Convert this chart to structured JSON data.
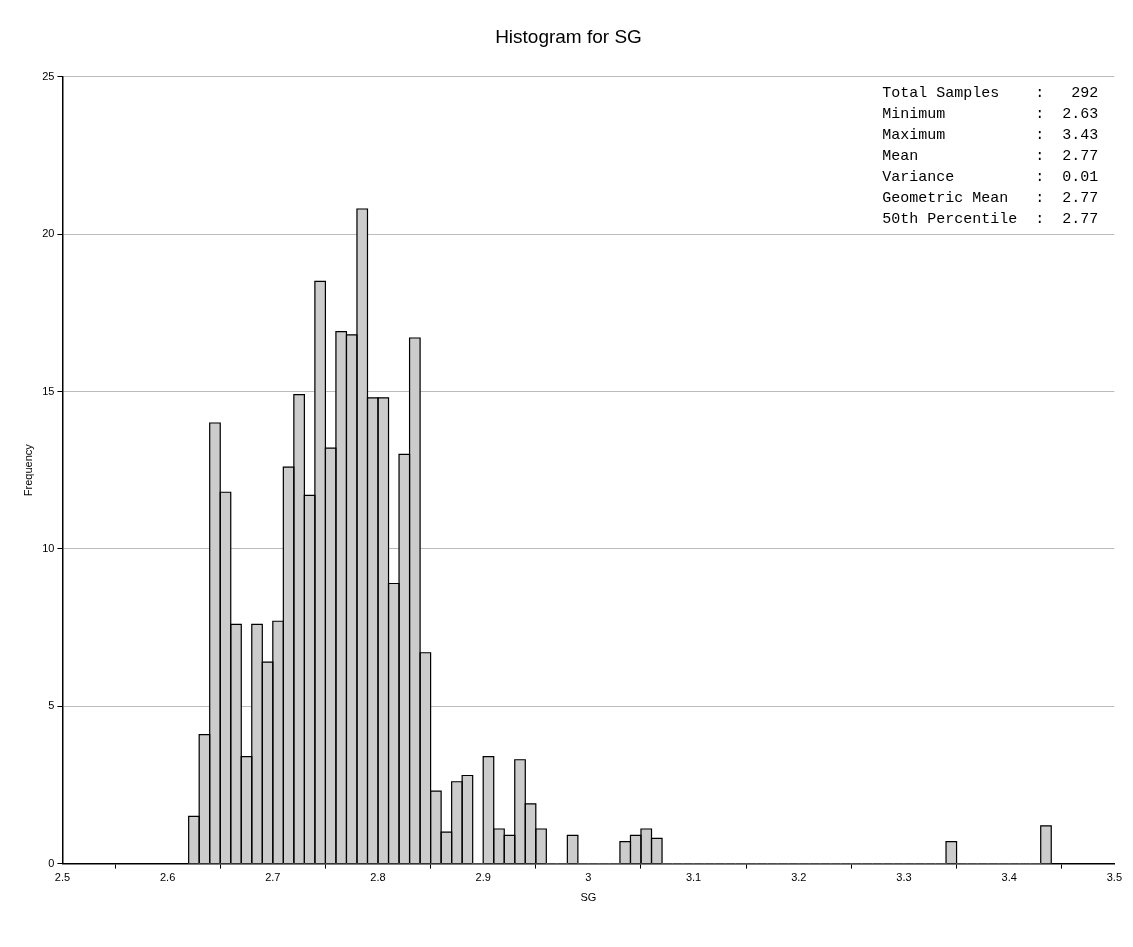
{
  "chart_data": {
    "type": "histogram",
    "title": "Histogram for SG",
    "xlabel": "SG",
    "ylabel": "Frequency",
    "bins": [
      2.62,
      2.63,
      2.64,
      2.65,
      2.66,
      2.67,
      2.68,
      2.69,
      2.7,
      2.71,
      2.72,
      2.73,
      2.74,
      2.75,
      2.76,
      2.77,
      2.78,
      2.79,
      2.8,
      2.81,
      2.82,
      2.83,
      2.84,
      2.85,
      2.86,
      2.87,
      2.88,
      2.89,
      2.9,
      2.91,
      2.92,
      2.93,
      2.94,
      2.95,
      2.96,
      2.97,
      2.98,
      2.99,
      3.0,
      3.01,
      3.02,
      3.03,
      3.04,
      3.05,
      3.06,
      3.07,
      3.08,
      3.09,
      3.1,
      3.11,
      3.12,
      3.13,
      3.14,
      3.15,
      3.16,
      3.17,
      3.18,
      3.19,
      3.2,
      3.21,
      3.22,
      3.23,
      3.24,
      3.25,
      3.26,
      3.27,
      3.28,
      3.29,
      3.3,
      3.31,
      3.32,
      3.33,
      3.34,
      3.35,
      3.36,
      3.37,
      3.38,
      3.39,
      3.4,
      3.41,
      3.42,
      3.43,
      3.44
    ],
    "values": [
      1.5,
      4.1,
      14.0,
      11.8,
      7.6,
      3.4,
      7.6,
      6.4,
      7.7,
      12.6,
      14.9,
      11.7,
      18.5,
      13.2,
      16.9,
      16.8,
      20.8,
      14.8,
      14.8,
      8.9,
      13.0,
      16.7,
      6.7,
      2.3,
      1.0,
      2.6,
      2.8,
      0,
      3.4,
      1.1,
      0.9,
      3.3,
      1.9,
      1.1,
      0,
      0,
      0.9,
      0,
      0,
      0,
      0,
      0.7,
      0.9,
      1.1,
      0.8,
      0,
      0,
      0,
      0,
      0,
      0,
      0,
      0,
      0,
      0,
      0,
      0,
      0,
      0,
      0,
      0,
      0,
      0,
      0,
      0,
      0,
      0,
      0,
      0,
      0,
      0,
      0,
      0.7,
      0,
      0,
      0,
      0,
      0,
      0,
      0,
      0,
      1.2
    ],
    "color": "#cccccc",
    "xlim": [
      2.5,
      3.5
    ],
    "xticks": [
      2.5,
      2.6,
      2.7,
      2.8,
      2.9,
      3,
      3.1,
      3.2,
      3.3,
      3.4,
      3.5
    ],
    "ylim": [
      0,
      25
    ],
    "yticks": [
      0,
      5,
      10,
      15,
      20,
      25
    ],
    "grid": "y",
    "legend": false,
    "annotations": [
      "Total Samples    :   292",
      "Minimum          :  2.63",
      "Maximum          :  3.43",
      "Mean             :  2.77",
      "Variance         :  0.01",
      "Geometric Mean   :  2.77",
      "50th Percentile  :  2.77"
    ]
  }
}
